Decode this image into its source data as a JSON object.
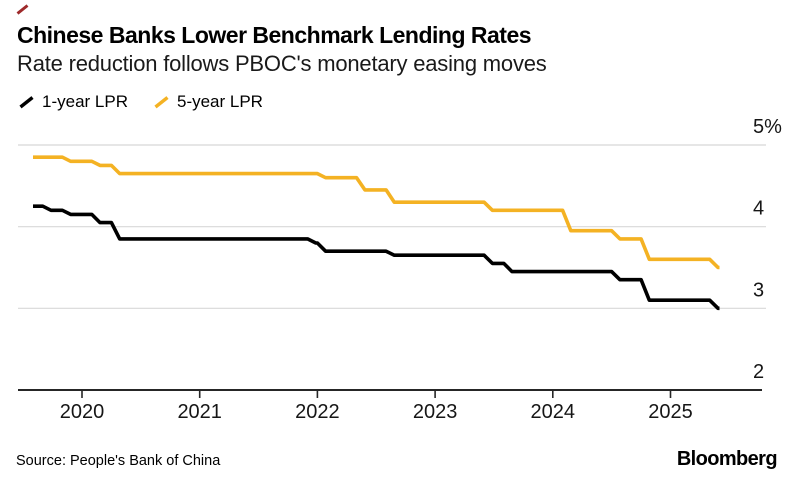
{
  "header": {
    "title": "Chinese Banks Lower Benchmark Lending Rates",
    "subtitle": "Rate reduction follows PBOC's monetary easing moves"
  },
  "legend": {
    "items": [
      {
        "label": "1-year LPR",
        "color": "#000000"
      },
      {
        "label": "5-year LPR",
        "color": "#F4B223"
      }
    ]
  },
  "chart_data": {
    "type": "line",
    "style": "step",
    "title": "Chinese Banks Lower Benchmark Lending Rates",
    "subtitle": "Rate reduction follows PBOC's monetary easing moves",
    "unit": "%",
    "ylim": [
      2,
      5
    ],
    "grid": "horizontal",
    "legend_position": "top-left",
    "x_ticks": [
      2020,
      2021,
      2022,
      2023,
      2024,
      2025
    ],
    "y_ticks": [
      {
        "value": 5,
        "label": "5%"
      },
      {
        "value": 4,
        "label": "4"
      },
      {
        "value": 3,
        "label": "3"
      },
      {
        "value": 2,
        "label": "2"
      }
    ],
    "x_start": "2019-08",
    "x_end": "2025-06",
    "series": [
      {
        "name": "1-year LPR",
        "color": "#000000",
        "steps": [
          [
            "2019-08",
            4.25
          ],
          [
            "2019-09",
            4.2
          ],
          [
            "2019-11",
            4.15
          ],
          [
            "2020-02",
            4.05
          ],
          [
            "2020-04",
            3.85
          ],
          [
            "2021-12",
            3.8
          ],
          [
            "2022-01",
            3.7
          ],
          [
            "2022-08",
            3.65
          ],
          [
            "2023-06",
            3.55
          ],
          [
            "2023-08",
            3.45
          ],
          [
            "2024-07",
            3.35
          ],
          [
            "2024-10",
            3.1
          ],
          [
            "2025-05",
            3.0
          ]
        ]
      },
      {
        "name": "5-year LPR",
        "color": "#F4B223",
        "steps": [
          [
            "2019-08",
            4.85
          ],
          [
            "2019-11",
            4.8
          ],
          [
            "2020-02",
            4.75
          ],
          [
            "2020-04",
            4.65
          ],
          [
            "2022-01",
            4.6
          ],
          [
            "2022-05",
            4.45
          ],
          [
            "2022-08",
            4.3
          ],
          [
            "2023-06",
            4.2
          ],
          [
            "2024-02",
            3.95
          ],
          [
            "2024-07",
            3.85
          ],
          [
            "2024-10",
            3.6
          ],
          [
            "2025-05",
            3.5
          ]
        ]
      }
    ]
  },
  "footer": {
    "source": "Source: People's Bank of China",
    "brand": "Bloomberg"
  },
  "colors": {
    "accent_yellow": "#F4B223",
    "line_black": "#000000",
    "grid": "#D8D8D8",
    "axis": "#262626",
    "flag_red": "#9E2A2B"
  }
}
